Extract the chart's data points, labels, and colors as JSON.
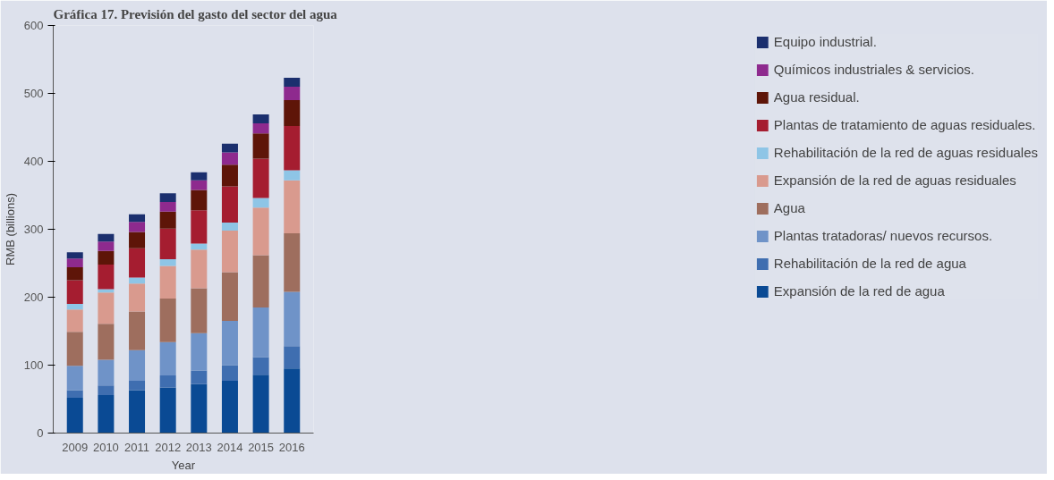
{
  "chart_data": {
    "type": "bar",
    "stacked": true,
    "title": "Gráfica 17. Previsión del gasto del sector del agua",
    "xlabel": "Year",
    "ylabel": "RMB (billions)",
    "categories": [
      "2009",
      "2010",
      "2011",
      "2012",
      "2013",
      "2014",
      "2015",
      "2016"
    ],
    "ylim": [
      0,
      600
    ],
    "yticks": [
      0,
      100,
      200,
      300,
      400,
      500,
      600
    ],
    "grid": false,
    "legend": "right",
    "series": [
      {
        "name": "Expansión de la red de agua",
        "color": "#0a4a94",
        "values": [
          52,
          56,
          63,
          67,
          72,
          77,
          86,
          95
        ]
      },
      {
        "name": "Rehabilitación de la red de agua",
        "color": "#3f6eb0",
        "values": [
          11,
          14,
          14,
          18,
          20,
          23,
          26,
          33
        ]
      },
      {
        "name": "Plantas tratadoras/ nuevos recursos.",
        "color": "#6f93c8",
        "values": [
          36,
          38,
          45,
          49,
          55,
          65,
          73,
          80
        ]
      },
      {
        "name": "Agua",
        "color": "#9e6e5e",
        "values": [
          50,
          53,
          57,
          64,
          66,
          72,
          77,
          86
        ]
      },
      {
        "name": "Expansión de la red de aguas residuales",
        "color": "#d99a8e",
        "values": [
          33,
          46,
          41,
          48,
          57,
          61,
          70,
          78
        ]
      },
      {
        "name": "Rehabilitación de la red de aguas residuales",
        "color": "#8ec5e6",
        "values": [
          8,
          5,
          9,
          10,
          9,
          12,
          14,
          15
        ]
      },
      {
        "name": "Plantas de tratamiento de aguas residuales.",
        "color": "#a51d30",
        "values": [
          35,
          36,
          43,
          45,
          49,
          53,
          58,
          65
        ]
      },
      {
        "name": "Agua residual.",
        "color": "#5e1508",
        "values": [
          19,
          20,
          24,
          25,
          30,
          32,
          37,
          38
        ]
      },
      {
        "name": "Químicos industriales & servicios.",
        "color": "#8e2a8e",
        "values": [
          13,
          14,
          15,
          14,
          14,
          18,
          15,
          20
        ]
      },
      {
        "name": "Equipo industrial.",
        "color": "#1b2f6e",
        "values": [
          9,
          11,
          11,
          13,
          12,
          13,
          13,
          13
        ]
      }
    ]
  }
}
